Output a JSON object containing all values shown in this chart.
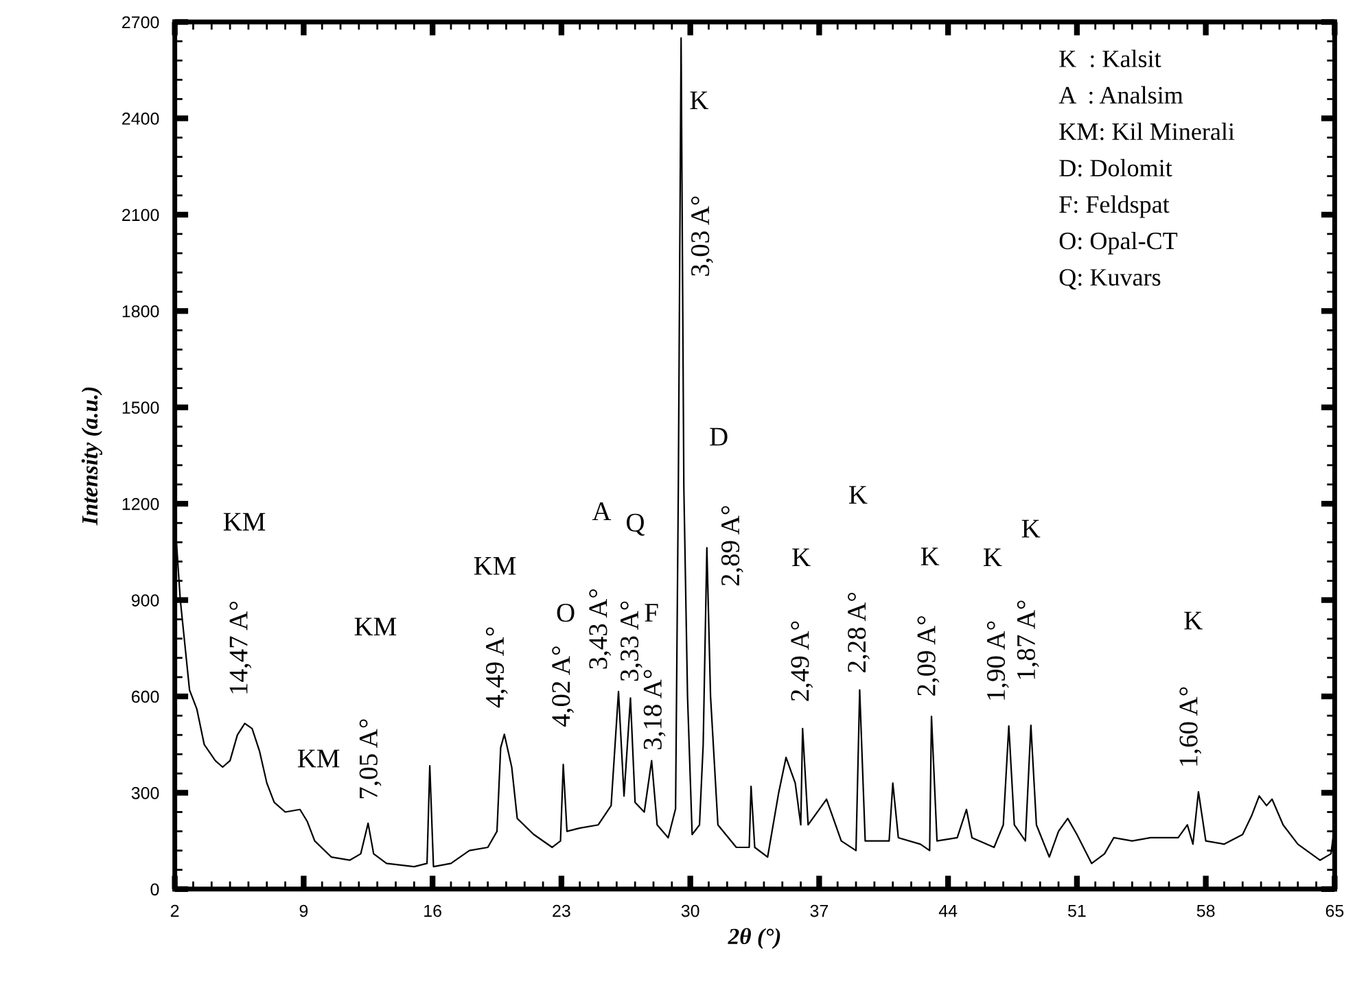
{
  "chart_data": {
    "type": "line",
    "xlabel": "2θ (°)",
    "ylabel": "Intensity (a.u.)",
    "xlim": [
      2,
      65
    ],
    "xticks": [
      2,
      9,
      16,
      23,
      30,
      37,
      44,
      51,
      58,
      65
    ],
    "ylim": [
      0,
      2700
    ],
    "yticks": [
      0,
      300,
      600,
      900,
      1200,
      1500,
      1800,
      2100,
      2400,
      2700
    ],
    "grid": false,
    "legend": false,
    "marker": "none",
    "line_style": "solid",
    "series": [
      {
        "color": "#000000",
        "x": [
          2.0,
          2.3,
          2.8,
          3.2,
          3.6,
          4.2,
          4.6,
          5.0,
          5.4,
          5.8,
          6.2,
          6.6,
          7.0,
          7.4,
          8.0,
          8.8,
          9.2,
          9.6,
          10.5,
          11.5,
          12.1,
          12.5,
          12.8,
          13.5,
          15.0,
          15.7,
          15.85,
          16.05,
          17.0,
          18.0,
          19.0,
          19.5,
          19.7,
          19.9,
          20.3,
          20.6,
          21.5,
          22.5,
          22.95,
          23.1,
          23.3,
          24.0,
          25.0,
          25.7,
          26.1,
          26.4,
          26.75,
          27.0,
          27.5,
          27.9,
          28.2,
          28.8,
          29.2,
          29.35,
          29.5,
          29.65,
          29.85,
          30.1,
          30.5,
          30.7,
          30.9,
          31.1,
          31.5,
          32.5,
          33.2,
          33.3,
          33.5,
          34.2,
          34.8,
          35.2,
          35.7,
          36.0,
          36.1,
          36.4,
          37.4,
          38.2,
          39.0,
          39.2,
          39.5,
          40.8,
          41.0,
          41.3,
          42.5,
          43.0,
          43.1,
          43.4,
          44.5,
          45.0,
          45.3,
          46.5,
          47.0,
          47.3,
          47.6,
          48.2,
          48.5,
          48.8,
          49.5,
          50.0,
          50.5,
          51.0,
          51.8,
          52.5,
          53.0,
          54.0,
          55.0,
          56.5,
          57.0,
          57.3,
          57.6,
          58.0,
          59.0,
          60.0,
          60.5,
          60.9,
          61.3,
          61.6,
          62.2,
          63.0,
          64.2,
          64.8,
          65.0
        ],
        "values": [
          1157,
          900,
          620,
          560,
          450,
          400,
          380,
          400,
          480,
          516,
          500,
          430,
          330,
          270,
          240,
          248,
          210,
          150,
          100,
          90,
          110,
          205,
          110,
          80,
          70,
          80,
          384,
          70,
          80,
          120,
          130,
          180,
          440,
          482,
          380,
          220,
          170,
          130,
          150,
          388,
          180,
          190,
          200,
          260,
          615,
          290,
          595,
          270,
          240,
          400,
          200,
          160,
          250,
          1250,
          2650,
          1250,
          600,
          170,
          200,
          450,
          1063,
          600,
          200,
          130,
          130,
          320,
          130,
          100,
          300,
          410,
          330,
          200,
          500,
          200,
          280,
          150,
          120,
          620,
          150,
          150,
          330,
          160,
          140,
          120,
          538,
          150,
          160,
          248,
          160,
          130,
          200,
          508,
          200,
          150,
          510,
          200,
          100,
          180,
          220,
          170,
          80,
          110,
          160,
          150,
          160,
          160,
          200,
          140,
          303,
          150,
          140,
          170,
          230,
          290,
          260,
          280,
          200,
          140,
          90,
          110,
          200
        ]
      }
    ],
    "annotations": [
      "KM",
      "14,47 A°",
      "KM",
      "KM",
      "7,05 A°",
      "KM",
      "4,49 A°",
      "4,02 A°",
      "O",
      "A",
      "Q",
      "3,43 A°",
      "3,33 A°",
      "F",
      "3,18 A°",
      "K",
      "3,03 A°",
      "D",
      "2,89 A°",
      "K",
      "2,49 A°",
      "K",
      "2,28 A°",
      "K",
      "2,09 A°",
      "K",
      "K",
      "1,90 A°",
      "1,87 A°",
      "K",
      "1,60 A°",
      "K  : Kalsit",
      "A  : Analsim",
      "KM: Kil Minerali",
      "D: Dolomit",
      "F: Feldspat",
      "O: Opal-CT",
      "Q: Kuvars"
    ]
  }
}
